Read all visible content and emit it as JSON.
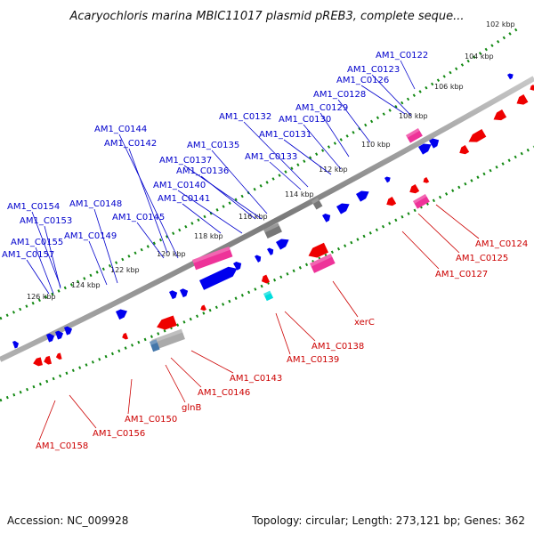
{
  "title": "Acaryochloris marina MBIC11017 plasmid pREB3, complete seque...",
  "footer": {
    "accession": "Accession: NC_009928",
    "summary": "Topology: circular; Length: 273,121 bp; Genes: 362"
  },
  "ticks": [
    {
      "label": "102 kbp"
    },
    {
      "label": "104 kbp"
    },
    {
      "label": "106 kbp"
    },
    {
      "label": "108 kbp"
    },
    {
      "label": "110 kbp"
    },
    {
      "label": "112 kbp"
    },
    {
      "label": "114 kbp"
    },
    {
      "label": "116 kbp"
    },
    {
      "label": "118 kbp"
    },
    {
      "label": "120 kbp"
    },
    {
      "label": "122 kbp"
    },
    {
      "label": "124 kbp"
    },
    {
      "label": "126 kbp"
    }
  ],
  "genes_forward": [
    "AM1_C0122",
    "AM1_C0123",
    "AM1_C0126",
    "AM1_C0128",
    "AM1_C0129",
    "AM1_C0130",
    "AM1_C0131",
    "AM1_C0132",
    "AM1_C0133",
    "AM1_C0135",
    "AM1_C0137",
    "AM1_C0136",
    "AM1_C0140",
    "AM1_C0141",
    "AM1_C0142",
    "AM1_C0144",
    "AM1_C0145",
    "AM1_C0148",
    "AM1_C0149",
    "AM1_C0154",
    "AM1_C0153",
    "AM1_C0155",
    "AM1_C0157"
  ],
  "genes_reverse": [
    "AM1_C0124",
    "AM1_C0125",
    "AM1_C0127",
    "xerC",
    "AM1_C0138",
    "AM1_C0139",
    "AM1_C0143",
    "AM1_C0146",
    "glnB",
    "AM1_C0150",
    "AM1_C0156",
    "AM1_C0158"
  ],
  "colors": {
    "forward_gene": "#0000ee",
    "reverse_gene": "#ee0000",
    "rna_gene": "#ee3399",
    "pseudo_gene": "#777777",
    "misc_gene": "#00dddd",
    "backbone": "#888888",
    "tick_dots": "#118811"
  }
}
